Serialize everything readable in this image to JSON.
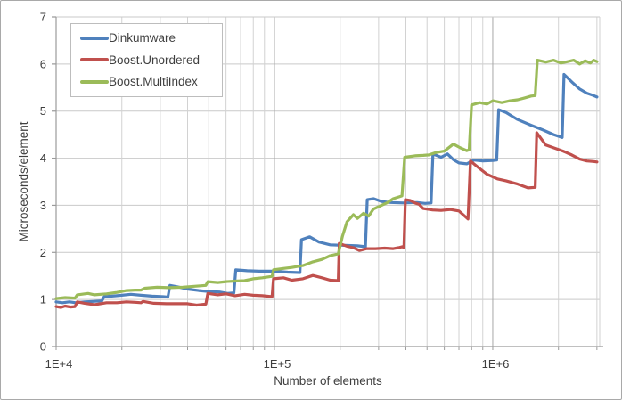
{
  "chart_data": {
    "type": "line",
    "title": "",
    "xlabel": "Number of elements",
    "ylabel": "Microseconds/element",
    "x_scale": "log10",
    "x_range": [
      10000,
      3090000
    ],
    "y_range": [
      0,
      7
    ],
    "y_ticks": [
      0,
      1,
      2,
      3,
      4,
      5,
      6,
      7
    ],
    "x_major_ticks": [
      {
        "value": 10000,
        "label": "1E+4"
      },
      {
        "value": 100000,
        "label": "1E+5"
      },
      {
        "value": 1000000,
        "label": "1E+6"
      }
    ],
    "grid": true,
    "legend_position": "top-left",
    "series": [
      {
        "name": "Dinkumware",
        "color": "#4F81BD",
        "points": [
          [
            10000,
            0.95
          ],
          [
            10700,
            0.93
          ],
          [
            11500,
            0.95
          ],
          [
            12300,
            0.93
          ],
          [
            13500,
            0.95
          ],
          [
            14800,
            0.96
          ],
          [
            16200,
            0.97
          ],
          [
            16600,
            1.06
          ],
          [
            18000,
            1.07
          ],
          [
            20000,
            1.09
          ],
          [
            22000,
            1.11
          ],
          [
            24500,
            1.09
          ],
          [
            27500,
            1.07
          ],
          [
            31000,
            1.06
          ],
          [
            32500,
            1.05
          ],
          [
            33200,
            1.3
          ],
          [
            36000,
            1.27
          ],
          [
            40000,
            1.22
          ],
          [
            45000,
            1.19
          ],
          [
            50000,
            1.17
          ],
          [
            56000,
            1.16
          ],
          [
            61000,
            1.13
          ],
          [
            65200,
            1.14
          ],
          [
            66500,
            1.63
          ],
          [
            75000,
            1.61
          ],
          [
            85000,
            1.6
          ],
          [
            100000,
            1.6
          ],
          [
            115000,
            1.58
          ],
          [
            130800,
            1.57
          ],
          [
            133000,
            2.27
          ],
          [
            145000,
            2.33
          ],
          [
            160000,
            2.22
          ],
          [
            180000,
            2.16
          ],
          [
            210000,
            2.15
          ],
          [
            240000,
            2.14
          ],
          [
            261000,
            2.12
          ],
          [
            266000,
            3.12
          ],
          [
            285000,
            3.14
          ],
          [
            310000,
            3.08
          ],
          [
            340000,
            3.06
          ],
          [
            390000,
            3.05
          ],
          [
            450000,
            3.06
          ],
          [
            490000,
            3.04
          ],
          [
            522000,
            3.05
          ],
          [
            532000,
            4.09
          ],
          [
            580000,
            4.02
          ],
          [
            620000,
            4.09
          ],
          [
            660000,
            3.97
          ],
          [
            700000,
            3.9
          ],
          [
            760000,
            3.88
          ],
          [
            820000,
            3.96
          ],
          [
            900000,
            3.94
          ],
          [
            1000000,
            3.95
          ],
          [
            1043000,
            3.96
          ],
          [
            1064000,
            5.03
          ],
          [
            1150000,
            4.97
          ],
          [
            1300000,
            4.82
          ],
          [
            1500000,
            4.7
          ],
          [
            1700000,
            4.6
          ],
          [
            1900000,
            4.5
          ],
          [
            2080000,
            4.44
          ],
          [
            2120000,
            5.78
          ],
          [
            2300000,
            5.62
          ],
          [
            2500000,
            5.47
          ],
          [
            2700000,
            5.38
          ],
          [
            2900000,
            5.33
          ],
          [
            3000000,
            5.3
          ]
        ]
      },
      {
        "name": "Boost.Unordered",
        "color": "#C0504D",
        "points": [
          [
            10000,
            0.85
          ],
          [
            10500,
            0.83
          ],
          [
            11000,
            0.86
          ],
          [
            11600,
            0.84
          ],
          [
            12200,
            0.85
          ],
          [
            12500,
            0.95
          ],
          [
            13500,
            0.92
          ],
          [
            15000,
            0.89
          ],
          [
            17000,
            0.93
          ],
          [
            19000,
            0.93
          ],
          [
            21000,
            0.95
          ],
          [
            23000,
            0.94
          ],
          [
            24500,
            0.93
          ],
          [
            25000,
            0.96
          ],
          [
            28000,
            0.92
          ],
          [
            32000,
            0.91
          ],
          [
            36000,
            0.91
          ],
          [
            40000,
            0.91
          ],
          [
            44000,
            0.88
          ],
          [
            48500,
            0.9
          ],
          [
            49500,
            1.13
          ],
          [
            55000,
            1.1
          ],
          [
            60000,
            1.12
          ],
          [
            66000,
            1.08
          ],
          [
            73000,
            1.11
          ],
          [
            80000,
            1.09
          ],
          [
            88000,
            1.08
          ],
          [
            97500,
            1.06
          ],
          [
            99000,
            1.44
          ],
          [
            110000,
            1.46
          ],
          [
            120000,
            1.41
          ],
          [
            135000,
            1.44
          ],
          [
            150000,
            1.51
          ],
          [
            165000,
            1.46
          ],
          [
            180000,
            1.41
          ],
          [
            196000,
            1.4
          ],
          [
            198000,
            2.19
          ],
          [
            215000,
            2.13
          ],
          [
            230000,
            2.1
          ],
          [
            245000,
            2.04
          ],
          [
            265000,
            2.08
          ],
          [
            290000,
            2.08
          ],
          [
            320000,
            2.09
          ],
          [
            350000,
            2.08
          ],
          [
            370000,
            2.1
          ],
          [
            385000,
            2.12
          ],
          [
            392000,
            2.1
          ],
          [
            398000,
            3.12
          ],
          [
            420000,
            3.1
          ],
          [
            440000,
            3.05
          ],
          [
            460000,
            3.02
          ],
          [
            480000,
            2.93
          ],
          [
            530000,
            2.9
          ],
          [
            580000,
            2.89
          ],
          [
            640000,
            2.91
          ],
          [
            700000,
            2.88
          ],
          [
            770000,
            2.71
          ],
          [
            790000,
            3.94
          ],
          [
            860000,
            3.8
          ],
          [
            940000,
            3.66
          ],
          [
            1050000,
            3.56
          ],
          [
            1150000,
            3.52
          ],
          [
            1300000,
            3.45
          ],
          [
            1450000,
            3.37
          ],
          [
            1565000,
            3.38
          ],
          [
            1590000,
            4.54
          ],
          [
            1750000,
            4.28
          ],
          [
            1900000,
            4.22
          ],
          [
            2100000,
            4.15
          ],
          [
            2300000,
            4.07
          ],
          [
            2500000,
            3.98
          ],
          [
            2700000,
            3.94
          ],
          [
            2900000,
            3.93
          ],
          [
            3000000,
            3.92
          ]
        ]
      },
      {
        "name": "Boost.MultiIndex",
        "color": "#9BBB59",
        "points": [
          [
            10000,
            1.02
          ],
          [
            11000,
            1.04
          ],
          [
            12200,
            1.03
          ],
          [
            12500,
            1.1
          ],
          [
            14000,
            1.13
          ],
          [
            15000,
            1.1
          ],
          [
            17000,
            1.12
          ],
          [
            19000,
            1.15
          ],
          [
            21000,
            1.19
          ],
          [
            23000,
            1.2
          ],
          [
            24500,
            1.2
          ],
          [
            25500,
            1.24
          ],
          [
            29000,
            1.26
          ],
          [
            33000,
            1.25
          ],
          [
            38000,
            1.26
          ],
          [
            43000,
            1.28
          ],
          [
            48500,
            1.3
          ],
          [
            49500,
            1.38
          ],
          [
            55000,
            1.36
          ],
          [
            60000,
            1.38
          ],
          [
            66000,
            1.39
          ],
          [
            73000,
            1.4
          ],
          [
            80000,
            1.44
          ],
          [
            88000,
            1.46
          ],
          [
            97500,
            1.49
          ],
          [
            99000,
            1.63
          ],
          [
            110000,
            1.66
          ],
          [
            120000,
            1.68
          ],
          [
            135000,
            1.72
          ],
          [
            150000,
            1.8
          ],
          [
            165000,
            1.85
          ],
          [
            180000,
            1.93
          ],
          [
            196000,
            1.97
          ],
          [
            205000,
            2.35
          ],
          [
            215000,
            2.65
          ],
          [
            230000,
            2.8
          ],
          [
            240000,
            2.72
          ],
          [
            256000,
            2.83
          ],
          [
            270000,
            2.77
          ],
          [
            284000,
            2.92
          ],
          [
            303000,
            2.98
          ],
          [
            330000,
            3.06
          ],
          [
            350000,
            3.14
          ],
          [
            384000,
            3.2
          ],
          [
            395000,
            4.02
          ],
          [
            440000,
            4.05
          ],
          [
            480000,
            4.06
          ],
          [
            510000,
            4.07
          ],
          [
            550000,
            4.12
          ],
          [
            600000,
            4.15
          ],
          [
            660000,
            4.3
          ],
          [
            710000,
            4.22
          ],
          [
            760000,
            4.16
          ],
          [
            780000,
            4.18
          ],
          [
            800000,
            5.13
          ],
          [
            870000,
            5.18
          ],
          [
            940000,
            5.15
          ],
          [
            1000000,
            5.22
          ],
          [
            1100000,
            5.18
          ],
          [
            1200000,
            5.22
          ],
          [
            1300000,
            5.24
          ],
          [
            1400000,
            5.28
          ],
          [
            1500000,
            5.32
          ],
          [
            1565000,
            5.33
          ],
          [
            1600000,
            6.08
          ],
          [
            1750000,
            6.04
          ],
          [
            1900000,
            6.08
          ],
          [
            2050000,
            6.02
          ],
          [
            2200000,
            6.05
          ],
          [
            2350000,
            6.08
          ],
          [
            2500000,
            6.0
          ],
          [
            2650000,
            6.07
          ],
          [
            2800000,
            6.02
          ],
          [
            2900000,
            6.08
          ],
          [
            3000000,
            6.05
          ]
        ]
      }
    ]
  },
  "colors": {
    "series_blue": "#4F81BD",
    "series_red": "#C0504D",
    "series_green": "#9BBB59",
    "axis_line": "#9b9b9b",
    "grid_minor": "#d2d2d2",
    "grid_major": "#a8a8a8",
    "grid_horizontal": "#c9c9c9",
    "text": "#3f3f3f"
  }
}
